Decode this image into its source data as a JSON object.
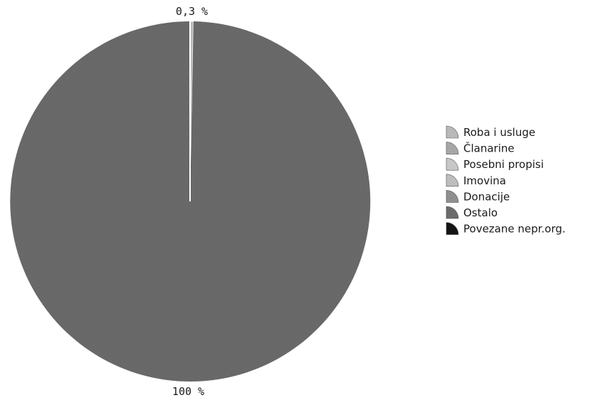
{
  "chart_data": {
    "type": "pie",
    "title": "",
    "slices": [
      {
        "label": "Roba i usluge",
        "value": 0.3,
        "color": "#b9b9b9"
      },
      {
        "label": "Članarine",
        "value": 0,
        "color": "#a7a7a7"
      },
      {
        "label": "Posebni propisi",
        "value": 0,
        "color": "#c7c7c7"
      },
      {
        "label": "Imovina",
        "value": 0,
        "color": "#bdbdbd"
      },
      {
        "label": "Donacije",
        "value": 0,
        "color": "#8f8f8f"
      },
      {
        "label": "Ostalo",
        "value": 99.7,
        "color": "#6b6b6b"
      },
      {
        "label": "Povezane nepr.org.",
        "value": 0,
        "color": "#141414"
      }
    ],
    "data_labels": [
      {
        "text": "0,3 %",
        "slice": "Roba i usluge"
      },
      {
        "text": "100 %",
        "slice": "Ostalo"
      }
    ],
    "legend": {
      "position": "right",
      "entries": [
        "Roba i usluge",
        "Članarine",
        "Posebni propisi",
        "Imovina",
        "Donacije",
        "Ostalo",
        "Povezane nepr.org."
      ]
    }
  }
}
